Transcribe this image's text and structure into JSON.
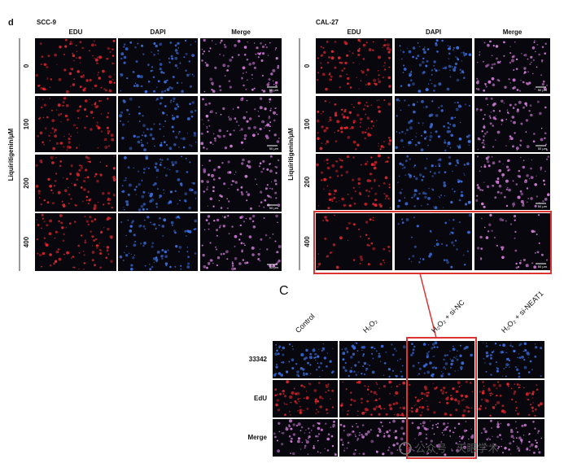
{
  "panel_d": {
    "label": "d",
    "scc9": {
      "title": "SCC-9",
      "columns": [
        "EDU",
        "DAPI",
        "Merge"
      ],
      "rows": [
        "0",
        "100",
        "200",
        "400"
      ],
      "axis_label": "Liquiritigenin/μM",
      "scale_bars": [
        "50 μm",
        "50 μm",
        "50 μm",
        "50 μm"
      ]
    },
    "cal27": {
      "title": "CAL-27",
      "columns": [
        "EDU",
        "DAPI",
        "Merge"
      ],
      "rows": [
        "0",
        "100",
        "200",
        "400"
      ],
      "axis_label": "Liquiritigenin/μM",
      "scale_bars": [
        "50 μm",
        "50 μm",
        "50 μm",
        "50 μm"
      ]
    }
  },
  "panel_c": {
    "label": "C",
    "columns": [
      "Control",
      "H₂O₂",
      "H₂O₂ + si-NC",
      "H₂O₂ + si-NEAT1"
    ],
    "rows": [
      "33342",
      "EdU",
      "Merge"
    ]
  },
  "watermark": "公众号 · 天眼学术"
}
